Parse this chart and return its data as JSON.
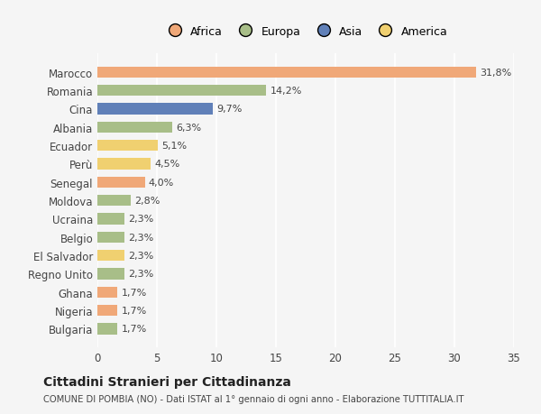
{
  "countries": [
    "Marocco",
    "Romania",
    "Cina",
    "Albania",
    "Ecuador",
    "Perù",
    "Senegal",
    "Moldova",
    "Ucraina",
    "Belgio",
    "El Salvador",
    "Regno Unito",
    "Ghana",
    "Nigeria",
    "Bulgaria"
  ],
  "values": [
    31.8,
    14.2,
    9.7,
    6.3,
    5.1,
    4.5,
    4.0,
    2.8,
    2.3,
    2.3,
    2.3,
    2.3,
    1.7,
    1.7,
    1.7
  ],
  "labels": [
    "31,8%",
    "14,2%",
    "9,7%",
    "6,3%",
    "5,1%",
    "4,5%",
    "4,0%",
    "2,8%",
    "2,3%",
    "2,3%",
    "2,3%",
    "2,3%",
    "1,7%",
    "1,7%",
    "1,7%"
  ],
  "continents": [
    "Africa",
    "Europa",
    "Asia",
    "Europa",
    "America",
    "America",
    "Africa",
    "Europa",
    "Europa",
    "Europa",
    "America",
    "Europa",
    "Africa",
    "Africa",
    "Europa"
  ],
  "colors": {
    "Africa": "#F0A878",
    "Europa": "#A8BE88",
    "Asia": "#6080B8",
    "America": "#F0D070"
  },
  "legend_order": [
    "Africa",
    "Europa",
    "Asia",
    "America"
  ],
  "bg_color": "#f5f5f5",
  "title": "Cittadini Stranieri per Cittadinanza",
  "subtitle": "COMUNE DI POMBIA (NO) - Dati ISTAT al 1° gennaio di ogni anno - Elaborazione TUTTITALIA.IT",
  "xlim": [
    0,
    35
  ],
  "xticks": [
    0,
    5,
    10,
    15,
    20,
    25,
    30,
    35
  ]
}
